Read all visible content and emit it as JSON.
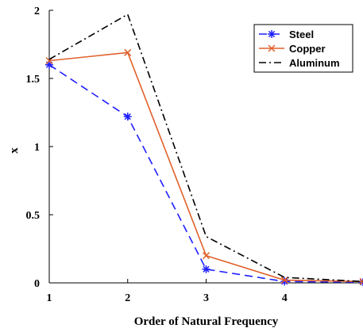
{
  "chart_data": {
    "type": "line",
    "xlabel": "Order of Natural Frequency",
    "ylabel": "x",
    "x": [
      1,
      2,
      3,
      4,
      5
    ],
    "xticks": [
      "1",
      "2",
      "3",
      "4"
    ],
    "yticks": [
      "0",
      "0.5",
      "1",
      "1.5",
      "2"
    ],
    "xlim": [
      1,
      5
    ],
    "ylim": [
      0,
      2
    ],
    "grid": false,
    "legend_position": "top-right",
    "series": [
      {
        "name": "Steel",
        "color": "#1f1fff",
        "line": "dashed",
        "marker": "asterisk",
        "values": [
          1.6,
          1.22,
          0.1,
          0.01,
          0.005
        ]
      },
      {
        "name": "Copper",
        "color": "#e0602b",
        "line": "solid",
        "marker": "x",
        "values": [
          1.63,
          1.69,
          0.2,
          0.02,
          0.01
        ]
      },
      {
        "name": "Aluminum",
        "color": "#000000",
        "line": "dashdot",
        "marker": "none",
        "values": [
          1.64,
          1.97,
          0.34,
          0.04,
          0.01
        ]
      }
    ]
  }
}
